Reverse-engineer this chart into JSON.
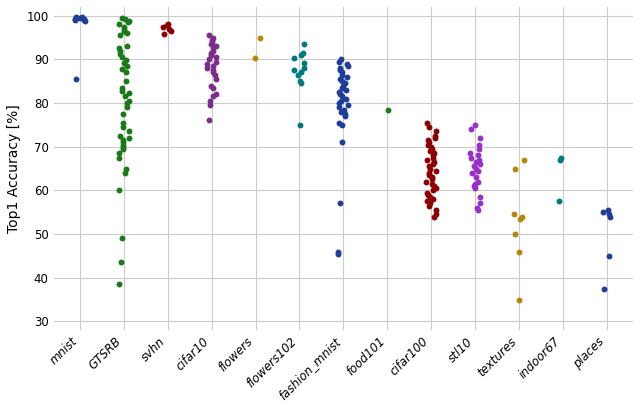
{
  "datasets": {
    "mnist": {
      "color": "#1f3d99",
      "values": [
        99.7,
        99.6,
        99.5,
        99.4,
        99.3,
        99.2,
        99.1,
        99.0,
        98.8,
        85.5
      ]
    },
    "GTSRB": {
      "color": "#1a7a1a",
      "values": [
        99.5,
        99.2,
        98.8,
        98.5,
        98.0,
        97.5,
        97.0,
        96.5,
        96.0,
        95.5,
        93.0,
        92.5,
        91.8,
        91.2,
        90.5,
        89.8,
        89.2,
        88.5,
        87.8,
        87.0,
        85.0,
        83.5,
        82.8,
        82.2,
        81.5,
        80.5,
        80.0,
        79.0,
        77.5,
        75.5,
        74.5,
        73.5,
        72.5,
        72.0,
        71.5,
        71.0,
        70.5,
        70.0,
        69.5,
        68.5,
        67.5,
        65.0,
        64.0,
        60.0,
        49.0,
        43.5,
        38.5
      ]
    },
    "svhn": {
      "color": "#8b0000",
      "values": [
        98.2,
        97.8,
        97.5,
        97.0,
        96.5,
        95.8
      ]
    },
    "cifar10": {
      "color": "#7b2d8b",
      "values": [
        95.5,
        95.0,
        94.5,
        94.0,
        93.5,
        93.0,
        92.5,
        92.0,
        91.5,
        91.0,
        90.5,
        90.0,
        89.5,
        89.0,
        88.5,
        88.0,
        87.5,
        87.0,
        86.5,
        85.5,
        84.0,
        83.5,
        82.0,
        81.5,
        80.5,
        79.5,
        76.0
      ]
    },
    "flowers": {
      "color": "#b8860b",
      "values": [
        95.0,
        90.2
      ]
    },
    "flowers102": {
      "color": "#007b7b",
      "values": [
        93.5,
        91.5,
        91.0,
        90.2,
        89.2,
        88.0,
        87.5,
        87.0,
        86.5,
        85.0,
        84.5,
        75.0
      ]
    },
    "fashion_mnist": {
      "color": "#1f3d99",
      "values": [
        90.0,
        89.5,
        89.0,
        88.5,
        88.0,
        87.5,
        87.0,
        86.5,
        86.0,
        85.5,
        85.0,
        84.5,
        84.0,
        83.5,
        83.0,
        82.5,
        82.0,
        81.5,
        81.0,
        80.5,
        80.0,
        79.5,
        79.0,
        78.5,
        78.0,
        77.5,
        77.0,
        75.5,
        75.0,
        71.0,
        57.0,
        46.0,
        45.5
      ]
    },
    "food101": {
      "color": "#1a7a1a",
      "values": [
        78.5
      ]
    },
    "cifar100": {
      "color": "#8b0000",
      "values": [
        75.5,
        74.5,
        73.5,
        72.5,
        72.0,
        71.5,
        71.0,
        70.5,
        70.0,
        69.5,
        69.0,
        68.5,
        68.0,
        67.5,
        67.0,
        66.5,
        66.0,
        65.5,
        65.0,
        64.5,
        64.0,
        63.5,
        63.0,
        62.5,
        62.0,
        61.5,
        61.0,
        60.5,
        60.0,
        59.5,
        59.0,
        58.5,
        58.0,
        57.5,
        57.0,
        56.5,
        55.5,
        54.5,
        54.0
      ]
    },
    "stl10": {
      "color": "#9b30c8",
      "values": [
        75.0,
        74.0,
        72.0,
        70.5,
        69.5,
        68.5,
        68.0,
        67.5,
        67.0,
        66.5,
        66.0,
        65.5,
        65.0,
        64.5,
        64.0,
        63.0,
        62.0,
        61.5,
        61.0,
        60.5,
        58.5,
        57.0,
        56.0,
        55.5
      ]
    },
    "textures": {
      "color": "#b8860b",
      "values": [
        67.0,
        65.0,
        54.5,
        54.0,
        53.5,
        50.0,
        46.0,
        35.0
      ]
    },
    "indoor67": {
      "color": "#007b7b",
      "values": [
        67.5,
        67.0,
        57.5
      ]
    },
    "places": {
      "color": "#1f3d99",
      "values": [
        55.5,
        55.0,
        54.5,
        54.0,
        45.0,
        37.5
      ]
    }
  },
  "xlabel_categories": [
    "mnist",
    "GTSRB",
    "svhn",
    "cifar10",
    "flowers",
    "flowers102",
    "fashion_mnist",
    "food101",
    "cifar100",
    "stl10",
    "textures",
    "indoor67",
    "places"
  ],
  "ylabel": "Top1 Accuracy [%]",
  "ylim": [
    28,
    102
  ],
  "yticks": [
    30,
    40,
    50,
    60,
    70,
    80,
    90,
    100
  ],
  "background_color": "#ffffff",
  "grid_color": "#cccccc",
  "marker_size": 18,
  "jitter": 0.12,
  "tick_fontsize": 8.5,
  "ylabel_fontsize": 10
}
